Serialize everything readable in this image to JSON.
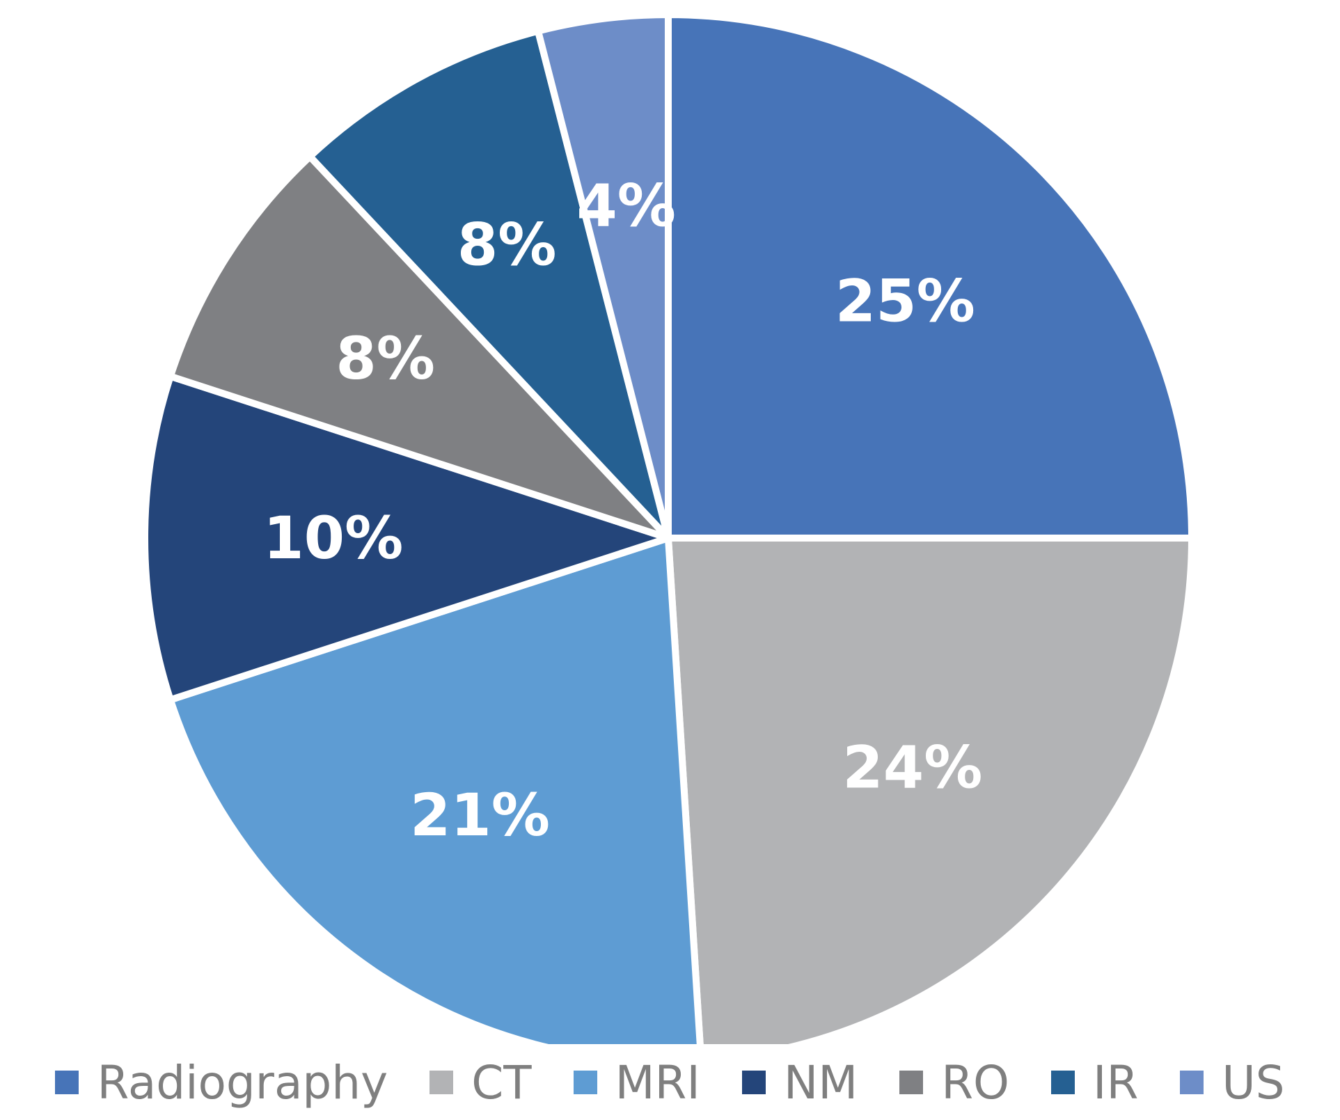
{
  "chart_data": {
    "type": "pie",
    "title": "",
    "categories": [
      "Radiography",
      "CT",
      "MRI",
      "NM",
      "RO",
      "IR",
      "US"
    ],
    "values": [
      25,
      24,
      21,
      10,
      8,
      8,
      4
    ],
    "labels": [
      "25%",
      "24%",
      "21%",
      "10%",
      "8%",
      "8%",
      "4%"
    ],
    "colors": [
      "#4774b8",
      "#b2b3b5",
      "#5e9cd3",
      "#24457a",
      "#7f8083",
      "#256092",
      "#6d8dc8"
    ],
    "start_angle": "top, clockwise",
    "legend_position": "bottom"
  }
}
